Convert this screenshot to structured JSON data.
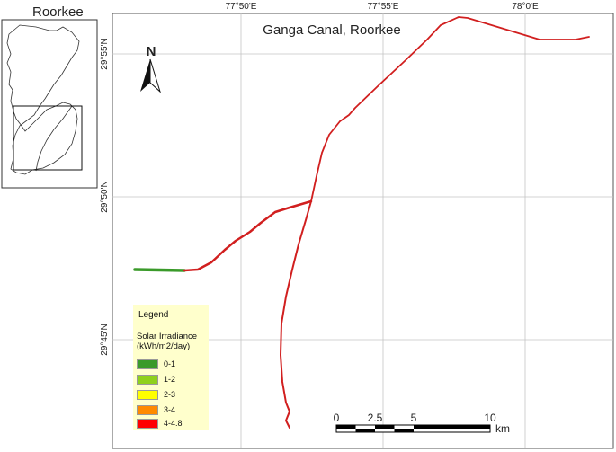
{
  "inset": {
    "title": "Roorkee"
  },
  "map": {
    "title": "Ganga Canal, Roorkee",
    "north_label": "N",
    "lon_labels": [
      "77°50'E",
      "77°55'E",
      "78°0'E"
    ],
    "lat_labels": [
      "29°55'N",
      "29°50'N",
      "29°45'N"
    ],
    "canal_color": "#d11f1f",
    "canal_start_color": "#3a9a2a"
  },
  "legend": {
    "title": "Legend",
    "subtitle": "Solar Irradiance (kWh/m2/day)",
    "items": [
      {
        "label": "0-1",
        "color": "#3a9a2a"
      },
      {
        "label": "1-2",
        "color": "#8fd11c"
      },
      {
        "label": "2-3",
        "color": "#ffff00"
      },
      {
        "label": "3-4",
        "color": "#ff8a00"
      },
      {
        "label": "4-4.8",
        "color": "#ff0000"
      }
    ]
  },
  "scale": {
    "labels": [
      "0",
      "2.5",
      "5",
      "10"
    ],
    "unit": "km"
  }
}
